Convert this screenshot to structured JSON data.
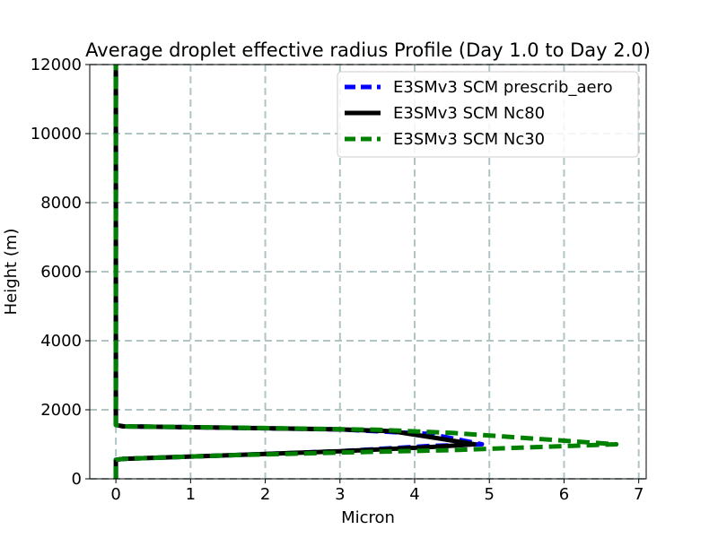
{
  "chart_data": {
    "type": "line",
    "title": "Average droplet effective radius Profile (Day 1.0 to Day 2.0)",
    "xlabel": "Micron",
    "ylabel": "Height (m)",
    "xlim": [
      -0.35,
      7.1
    ],
    "ylim": [
      0,
      12000
    ],
    "xticks": [
      0,
      1,
      2,
      3,
      4,
      5,
      6,
      7
    ],
    "yticks": [
      0,
      2000,
      4000,
      6000,
      8000,
      10000,
      12000
    ],
    "grid": true,
    "legend_position": "top-right",
    "series": [
      {
        "name": "E3SMv3 SCM prescrib_aero",
        "color": "#0000ff",
        "style": "dashed",
        "points": [
          [
            0,
            0
          ],
          [
            0,
            550
          ],
          [
            0.1,
            580
          ],
          [
            1.5,
            680
          ],
          [
            3,
            800
          ],
          [
            4.2,
            950
          ],
          [
            4.9,
            1000
          ],
          [
            4.2,
            1300
          ],
          [
            3,
            1430
          ],
          [
            1.5,
            1480
          ],
          [
            0.1,
            1520
          ],
          [
            0,
            1560
          ],
          [
            0,
            1650
          ],
          [
            0,
            12000
          ]
        ]
      },
      {
        "name": "E3SMv3 SCM Nc80",
        "color": "#000000",
        "style": "solid",
        "points": [
          [
            0,
            0
          ],
          [
            0,
            550
          ],
          [
            0.1,
            580
          ],
          [
            1.5,
            680
          ],
          [
            3,
            800
          ],
          [
            4.2,
            920
          ],
          [
            4.8,
            1000
          ],
          [
            4.3,
            1180
          ],
          [
            3.7,
            1380
          ],
          [
            3,
            1430
          ],
          [
            1.5,
            1480
          ],
          [
            0.1,
            1520
          ],
          [
            0,
            1560
          ],
          [
            0,
            1650
          ],
          [
            0,
            12000
          ]
        ]
      },
      {
        "name": "E3SMv3 SCM Nc30",
        "color": "#008000",
        "style": "dashed",
        "points": [
          [
            0,
            0
          ],
          [
            0,
            550
          ],
          [
            0.1,
            580
          ],
          [
            1.5,
            680
          ],
          [
            3,
            760
          ],
          [
            4.5,
            830
          ],
          [
            6.7,
            1000
          ],
          [
            4.5,
            1330
          ],
          [
            3.5,
            1420
          ],
          [
            2,
            1470
          ],
          [
            0.1,
            1520
          ],
          [
            0,
            1560
          ],
          [
            0,
            1650
          ],
          [
            0,
            12000
          ]
        ]
      }
    ]
  }
}
